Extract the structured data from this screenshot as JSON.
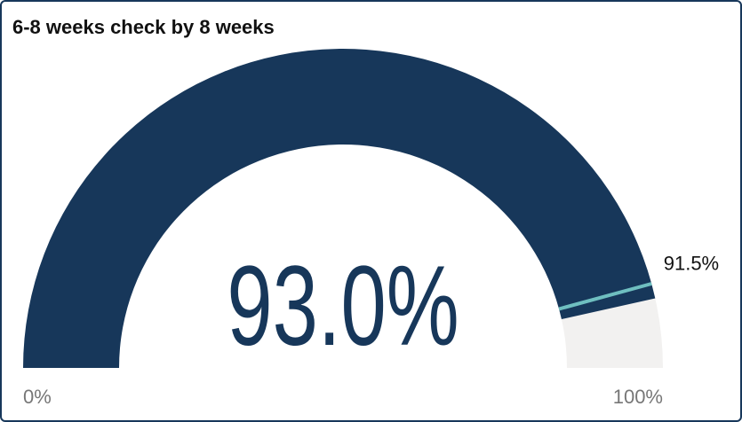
{
  "chart_data": {
    "type": "gauge",
    "title": "6-8 weeks check by 8 weeks",
    "value": 93.0,
    "value_label": "93.0%",
    "target": 91.5,
    "target_label": "91.5%",
    "ylim": [
      0,
      100
    ],
    "yticks": [
      {
        "value": 0,
        "label": "0%"
      },
      {
        "value": 100,
        "label": "100%"
      }
    ],
    "color": "#17375a",
    "background_color": "#f2f1f0",
    "target_color": "#6fbfc0"
  }
}
